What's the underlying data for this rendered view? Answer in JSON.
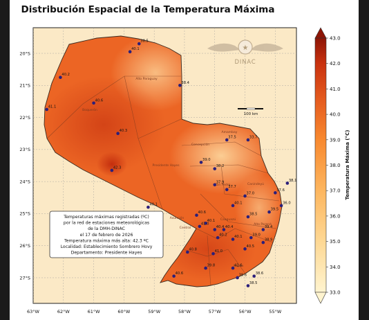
{
  "title": "Distribución Espacial de la Temperatura Máxima",
  "colors": {
    "sea": "#fbe9c6",
    "low": "#fdd9a0",
    "mid": "#f58a3a",
    "high": "#e0461a",
    "hot": "#c0290c",
    "station": "#2b1f7a"
  },
  "axes": {
    "lon_ticks": [
      "63°W",
      "62°W",
      "61°W",
      "60°W",
      "59°W",
      "58°W",
      "57°W",
      "56°W",
      "55°W"
    ],
    "lat_ticks": [
      "20°S",
      "21°S",
      "22°S",
      "23°S",
      "24°S",
      "25°S",
      "26°S",
      "27°S"
    ],
    "lon_range": [
      -63,
      -54.3
    ],
    "lat_range": [
      -19.2,
      -27.8
    ]
  },
  "colorbar": {
    "label": "Temperatura Máxima (°C)",
    "ticks": [
      "43.0",
      "42.0",
      "41.0",
      "40.0",
      "39.0",
      "38.0",
      "37.0",
      "36.0",
      "35.0",
      "34.0",
      "33.0"
    ]
  },
  "logo": {
    "text": "DINAC"
  },
  "scalebar": {
    "label": "100 km"
  },
  "regions": [
    "Alto Paraguay",
    "Boquerón",
    "Presidente Hayes",
    "Concepción",
    "Amambay",
    "San Pedro",
    "Canindeyú",
    "Caaguazú",
    "Alto Paraná",
    "Itapúa",
    "Central",
    "Asunción"
  ],
  "info_box": [
    "Temperaturas máximas registradas (ºC)",
    "por la red de estaciones meteorológicas",
    "de la DMH-DINAC",
    "el 17 de febrero de 2026",
    "Temperatura máxima más alta: 42.3 ºC",
    "Localidad: Establecimiento Sombrero Hovy",
    "Departamento: Presidente Hayes"
  ],
  "chart_data": {
    "type": "scatter",
    "title": "Distribución Espacial de la Temperatura Máxima",
    "x_label": "",
    "y_label": "",
    "xlim": [
      -63,
      -54.3
    ],
    "ylim": [
      -27.8,
      -19.2
    ],
    "colorbar_range": [
      33.0,
      43.0
    ],
    "stations": [
      {
        "lon": -59.5,
        "lat": -19.7,
        "value": "38.5"
      },
      {
        "lon": -59.8,
        "lat": -19.95,
        "value": "40.1"
      },
      {
        "lon": -62.1,
        "lat": -20.75,
        "value": "40.2"
      },
      {
        "lon": -58.15,
        "lat": -21.0,
        "value": "38.4"
      },
      {
        "lon": -61.0,
        "lat": -21.55,
        "value": "40.6"
      },
      {
        "lon": -62.55,
        "lat": -21.75,
        "value": "41.1"
      },
      {
        "lon": -60.2,
        "lat": -22.5,
        "value": "40.3"
      },
      {
        "lon": -56.6,
        "lat": -22.7,
        "value": "37.5"
      },
      {
        "lon": -55.9,
        "lat": -22.7,
        "value": "33.7"
      },
      {
        "lon": -60.4,
        "lat": -23.65,
        "value": "42.3"
      },
      {
        "lon": -57.45,
        "lat": -23.4,
        "value": "39.0"
      },
      {
        "lon": -57.0,
        "lat": -23.6,
        "value": "38.2"
      },
      {
        "lon": -54.6,
        "lat": -24.05,
        "value": "38.1"
      },
      {
        "lon": -57.0,
        "lat": -24.1,
        "value": "37.9"
      },
      {
        "lon": -56.6,
        "lat": -24.25,
        "value": "37.7"
      },
      {
        "lon": -55.0,
        "lat": -24.35,
        "value": "37.6"
      },
      {
        "lon": -56.0,
        "lat": -24.45,
        "value": "37.0"
      },
      {
        "lon": -56.4,
        "lat": -24.75,
        "value": "40.1"
      },
      {
        "lon": -54.8,
        "lat": -24.75,
        "value": "36.0"
      },
      {
        "lon": -59.2,
        "lat": -24.8,
        "value": "40.1"
      },
      {
        "lon": -55.2,
        "lat": -24.95,
        "value": "39.5"
      },
      {
        "lon": -55.9,
        "lat": -25.1,
        "value": "38.5"
      },
      {
        "lon": -57.6,
        "lat": -25.05,
        "value": "40.6"
      },
      {
        "lon": -57.3,
        "lat": -25.3,
        "value": "40.1"
      },
      {
        "lon": -57.5,
        "lat": -25.4,
        "value": "41.0"
      },
      {
        "lon": -57.0,
        "lat": -25.5,
        "value": "40.4"
      },
      {
        "lon": -56.7,
        "lat": -25.5,
        "value": "40.4"
      },
      {
        "lon": -56.9,
        "lat": -25.75,
        "value": "40.2"
      },
      {
        "lon": -55.4,
        "lat": -25.5,
        "value": "39.4"
      },
      {
        "lon": -56.4,
        "lat": -25.8,
        "value": "40.1"
      },
      {
        "lon": -55.8,
        "lat": -25.75,
        "value": "39.0"
      },
      {
        "lon": -55.4,
        "lat": -25.9,
        "value": "38.9"
      },
      {
        "lon": -56.0,
        "lat": -26.1,
        "value": "40.5"
      },
      {
        "lon": -57.05,
        "lat": -26.25,
        "value": "41.0"
      },
      {
        "lon": -57.9,
        "lat": -26.2,
        "value": "40.8"
      },
      {
        "lon": -57.3,
        "lat": -26.7,
        "value": "39.8"
      },
      {
        "lon": -56.4,
        "lat": -26.7,
        "value": "41.6"
      },
      {
        "lon": -58.35,
        "lat": -26.95,
        "value": "40.6"
      },
      {
        "lon": -56.25,
        "lat": -27.0,
        "value": "39.6"
      },
      {
        "lon": -55.7,
        "lat": -26.95,
        "value": "38.6"
      },
      {
        "lon": -55.9,
        "lat": -27.25,
        "value": "38.5"
      }
    ]
  }
}
